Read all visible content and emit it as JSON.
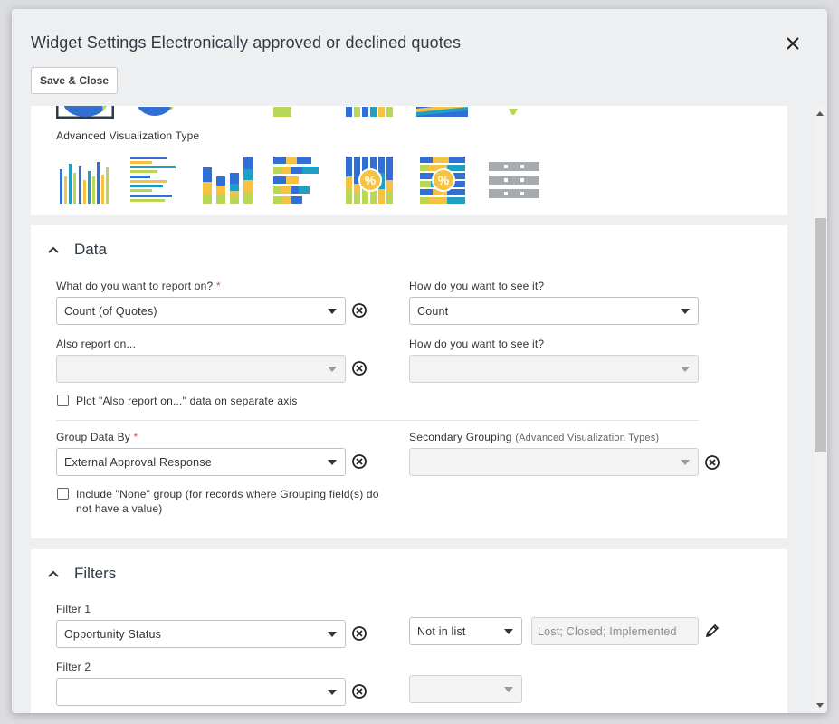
{
  "modal": {
    "title": "Widget Settings Electronically approved or declined quotes",
    "save_close_label": "Save & Close"
  },
  "visualization": {
    "advanced_label": "Advanced Visualization Type",
    "advanced_types": [
      "clustered-column",
      "clustered-bar",
      "stacked-column",
      "stacked-bar",
      "percent-stacked-column",
      "percent-stacked-bar",
      "table"
    ],
    "colors": {
      "blue": "#2f6fd6",
      "yellow": "#f5c242",
      "lime": "#b9d657",
      "teal": "#1ea0c4",
      "gray": "#a8abae"
    },
    "percent_symbol": "%"
  },
  "data_section": {
    "title": "Data",
    "report_on_label": "What do you want to report on?",
    "required_mark": "*",
    "report_on_value": "Count (of Quotes)",
    "see_it_label": "How do you want to see it?",
    "see_it_value": "Count",
    "also_report_label": "Also report on...",
    "also_report_value": "",
    "see_it_label_2": "How do you want to see it?",
    "see_it_value_2": "",
    "separate_axis_label": "Plot \"Also report on...\" data on separate axis",
    "group_by_label": "Group Data By",
    "group_by_value": "External Approval Response",
    "secondary_grouping_label": "Secondary Grouping",
    "secondary_grouping_hint": "(Advanced Visualization Types)",
    "secondary_grouping_value": "",
    "include_none_label_line1": "Include \"None\" group (for records where Grouping field(s) do",
    "include_none_label_line2": "not have a value)"
  },
  "filters_section": {
    "title": "Filters",
    "filter1_label": "Filter 1",
    "filter1_field": "Opportunity Status",
    "filter1_operator": "Not in list",
    "filter1_value": "Lost; Closed; Implemented",
    "filter2_label": "Filter 2",
    "filter2_field": "",
    "filter2_operator": ""
  }
}
